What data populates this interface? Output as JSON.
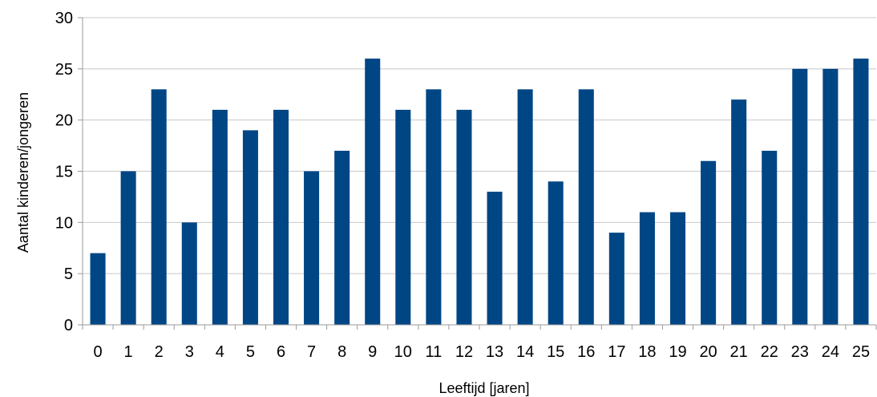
{
  "chart_data": {
    "type": "bar",
    "title": "",
    "xlabel": "Leeftijd [jaren]",
    "ylabel": "Aantal kinderen/jongeren",
    "categories": [
      "0",
      "1",
      "2",
      "3",
      "4",
      "5",
      "6",
      "7",
      "8",
      "9",
      "10",
      "11",
      "12",
      "13",
      "14",
      "15",
      "16",
      "17",
      "18",
      "19",
      "20",
      "21",
      "22",
      "23",
      "24",
      "25"
    ],
    "series": [
      {
        "values": [
          7,
          15,
          23,
          10,
          21,
          19,
          21,
          15,
          17,
          26,
          21,
          23,
          21,
          13,
          23,
          14,
          23,
          9,
          11,
          11,
          16,
          22,
          17,
          25,
          25,
          26
        ]
      }
    ],
    "ylim": [
      0,
      30
    ],
    "yticks": [
      0,
      5,
      10,
      15,
      20,
      25,
      30
    ],
    "grid": true,
    "legend": "none",
    "bar_color": "#004685"
  }
}
